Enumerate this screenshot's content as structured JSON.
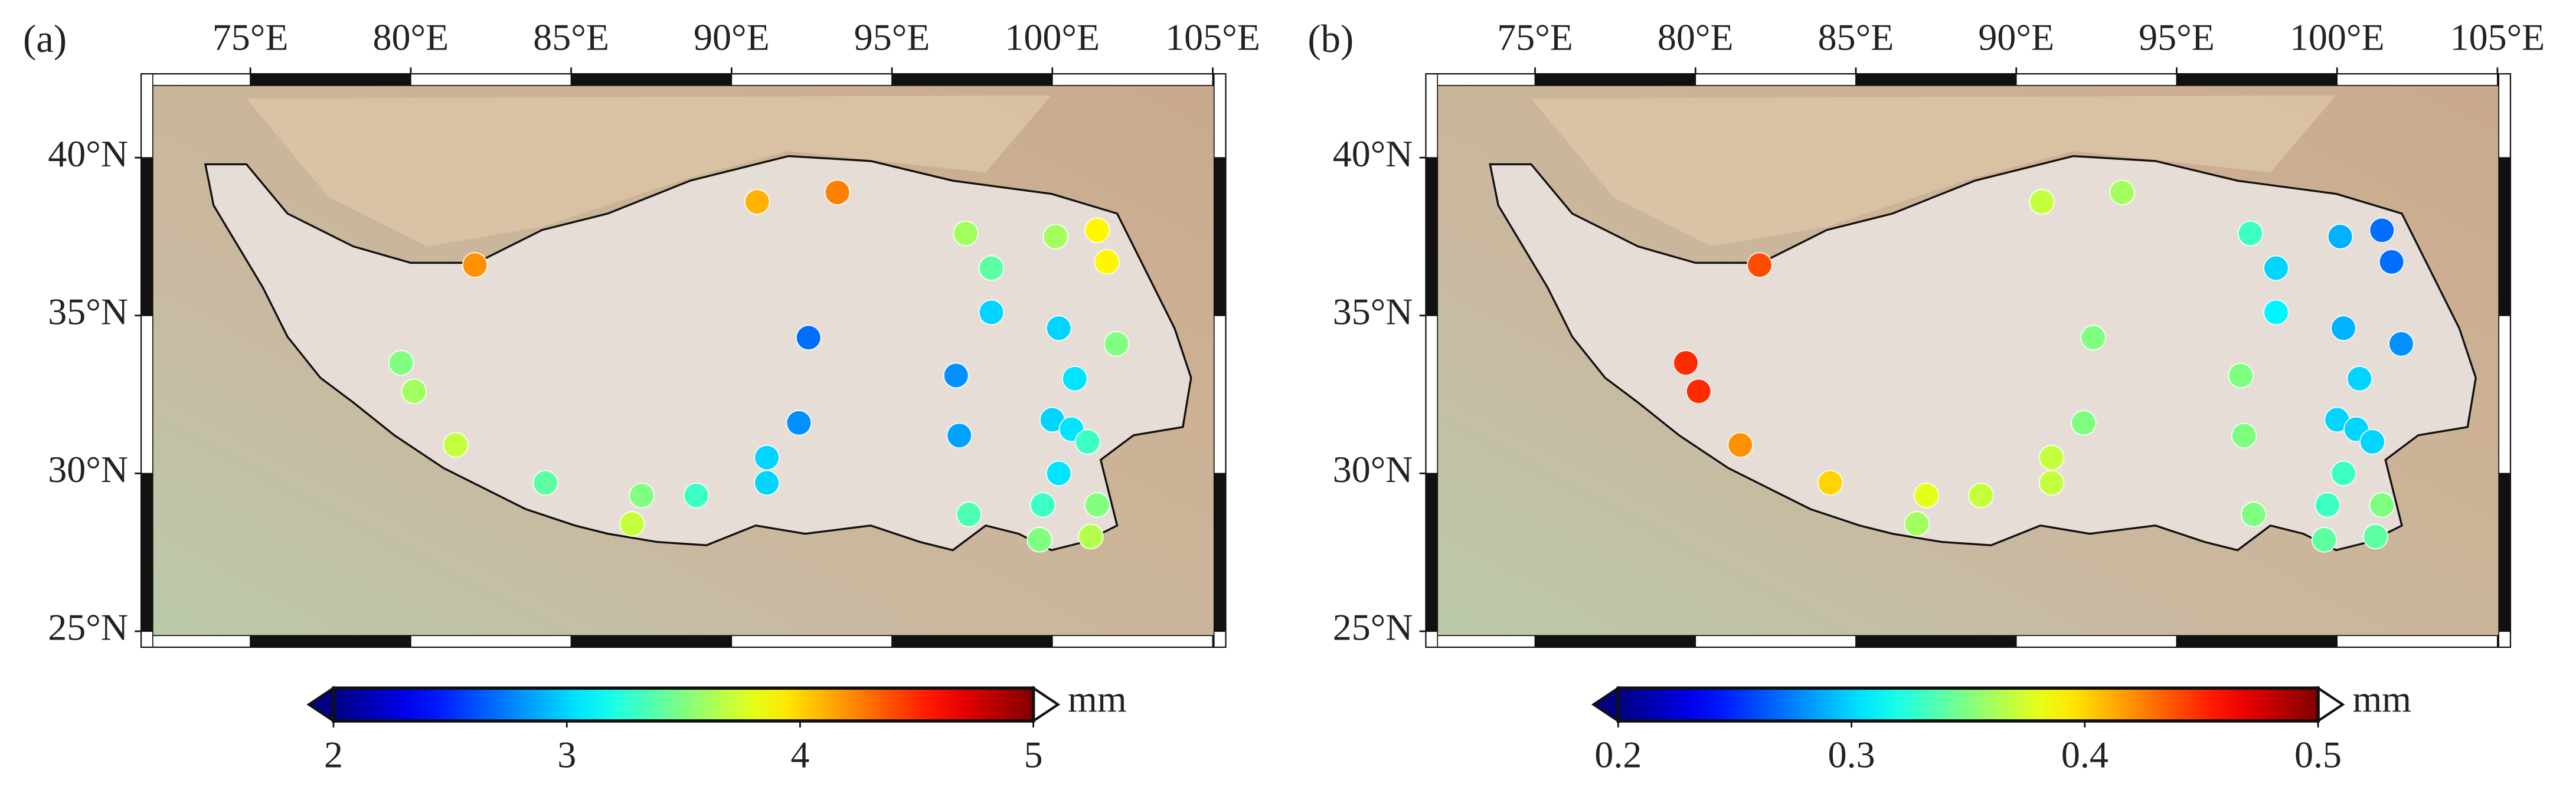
{
  "maps": [
    {
      "panel_label": "(a)",
      "xlim": [
        71.6,
        105.4
      ],
      "ylim": [
        24.5,
        42.65
      ],
      "xticks": [
        {
          "value": 75,
          "label": "75°E"
        },
        {
          "value": 80,
          "label": "80°E"
        },
        {
          "value": 85,
          "label": "85°E"
        },
        {
          "value": 90,
          "label": "90°E"
        },
        {
          "value": 95,
          "label": "95°E"
        },
        {
          "value": 100,
          "label": "100°E"
        },
        {
          "value": 105,
          "label": "105°E"
        }
      ],
      "yticks": [
        {
          "value": 25,
          "label": "25°N"
        },
        {
          "value": 30,
          "label": "30°N"
        },
        {
          "value": 35,
          "label": "35°N"
        },
        {
          "value": 40,
          "label": "40°N"
        }
      ],
      "colorbar": {
        "lim": [
          2,
          5
        ],
        "ticks": [
          2,
          3,
          4,
          5
        ],
        "unit": "mm",
        "colormap": "jet"
      },
      "stations": {
        "lon": [
          82.0,
          90.8,
          93.3,
          97.3,
          98.1,
          100.1,
          101.4,
          101.7,
          98.1,
          100.2,
          102.0,
          92.4,
          97.0,
          100.7,
          79.7,
          80.1,
          92.1,
          97.1,
          100.0,
          100.6,
          101.1,
          81.4,
          91.1,
          91.1,
          84.2,
          87.2,
          88.9,
          86.9,
          100.2,
          97.4,
          99.7,
          101.4,
          99.6,
          101.2
        ],
        "lat": [
          36.6,
          38.6,
          38.9,
          37.6,
          36.5,
          37.5,
          37.7,
          36.7,
          35.1,
          34.6,
          34.1,
          34.3,
          33.1,
          33.0,
          33.5,
          32.6,
          31.6,
          31.2,
          31.7,
          31.4,
          31.0,
          30.9,
          30.5,
          29.7,
          29.7,
          29.3,
          29.3,
          28.4,
          30.0,
          28.7,
          29.0,
          29.0,
          27.9,
          28.0
        ],
        "values": [
          4.2,
          4.1,
          4.25,
          3.6,
          3.4,
          3.6,
          3.9,
          3.9,
          3.0,
          3.0,
          3.5,
          2.7,
          2.8,
          3.05,
          3.5,
          3.6,
          2.8,
          2.85,
          3.0,
          3.05,
          3.3,
          3.7,
          3.0,
          3.0,
          3.4,
          3.5,
          3.3,
          3.7,
          3.05,
          3.35,
          3.3,
          3.5,
          3.5,
          3.65
        ]
      }
    },
    {
      "panel_label": "(b)",
      "xlim": [
        71.6,
        105.4
      ],
      "ylim": [
        24.5,
        42.65
      ],
      "xticks": [
        {
          "value": 75,
          "label": "75°E"
        },
        {
          "value": 80,
          "label": "80°E"
        },
        {
          "value": 85,
          "label": "85°E"
        },
        {
          "value": 90,
          "label": "90°E"
        },
        {
          "value": 95,
          "label": "95°E"
        },
        {
          "value": 100,
          "label": "100°E"
        },
        {
          "value": 105,
          "label": "105°E"
        }
      ],
      "yticks": [
        {
          "value": 25,
          "label": "25°N"
        },
        {
          "value": 30,
          "label": "30°N"
        },
        {
          "value": 35,
          "label": "35°N"
        },
        {
          "value": 40,
          "label": "40°N"
        }
      ],
      "colorbar": {
        "lim": [
          0.2,
          0.5
        ],
        "ticks": [
          0.2,
          0.3,
          0.4,
          0.5
        ],
        "unit": "mm",
        "colormap": "jet"
      },
      "stations": {
        "lon": [
          82.0,
          90.8,
          93.3,
          97.3,
          98.1,
          100.1,
          101.4,
          101.7,
          98.1,
          100.2,
          102.0,
          92.4,
          97.0,
          100.7,
          79.7,
          80.1,
          92.1,
          97.1,
          100.0,
          100.6,
          101.1,
          81.4,
          91.1,
          91.1,
          84.2,
          87.2,
          88.9,
          86.9,
          100.2,
          97.4,
          99.7,
          101.4,
          99.6,
          101.2
        ],
        "lat": [
          36.6,
          38.6,
          38.9,
          37.6,
          36.5,
          37.5,
          37.7,
          36.7,
          35.1,
          34.6,
          34.1,
          34.3,
          33.1,
          33.0,
          33.5,
          32.6,
          31.6,
          31.2,
          31.7,
          31.4,
          31.0,
          30.9,
          30.5,
          29.7,
          29.7,
          29.3,
          29.3,
          28.4,
          30.0,
          28.7,
          29.0,
          29.0,
          27.9,
          28.0
        ],
        "values": [
          0.44,
          0.37,
          0.36,
          0.33,
          0.3,
          0.29,
          0.27,
          0.27,
          0.31,
          0.29,
          0.28,
          0.35,
          0.35,
          0.3,
          0.45,
          0.45,
          0.35,
          0.35,
          0.3,
          0.3,
          0.3,
          0.42,
          0.37,
          0.37,
          0.4,
          0.38,
          0.37,
          0.36,
          0.33,
          0.35,
          0.33,
          0.35,
          0.34,
          0.34
        ]
      }
    }
  ]
}
